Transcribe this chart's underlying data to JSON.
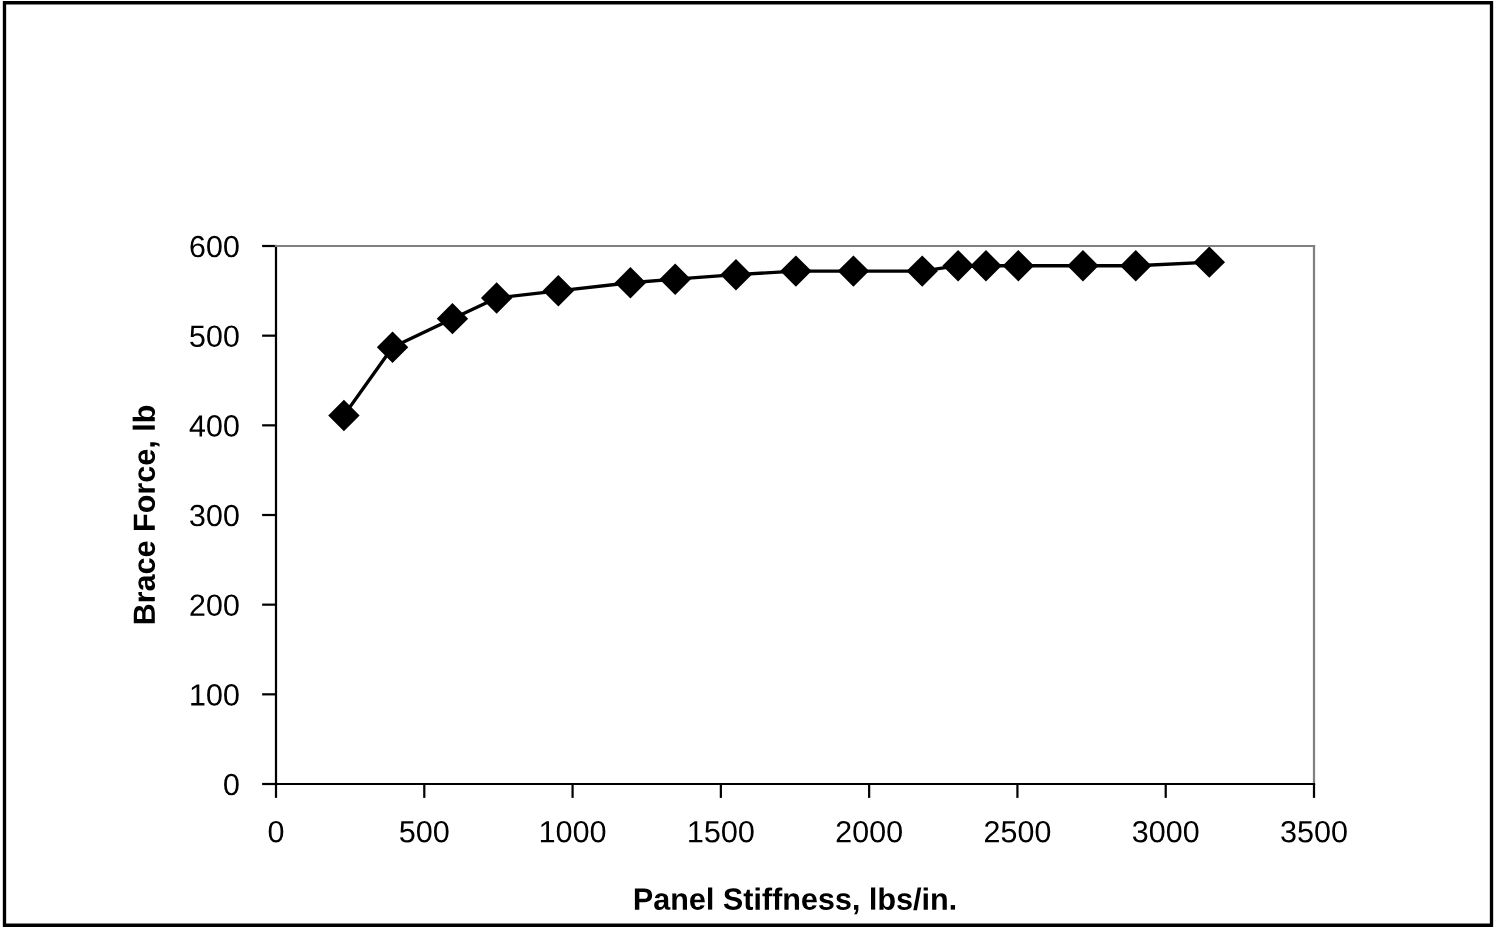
{
  "chart_data": {
    "type": "line",
    "xlabel": "Panel Stiffness, lbs/in.",
    "ylabel": "Brace Force, lb",
    "x": [
      229,
      393,
      595,
      744,
      952,
      1195,
      1346,
      1551,
      1753,
      1947,
      2179,
      2300,
      2394,
      2503,
      2721,
      2899,
      3147
    ],
    "series": [
      {
        "color": "#000000",
        "values": [
          411,
          487,
          519,
          542,
          550,
          559,
          563,
          568,
          572,
          572,
          572,
          578,
          578,
          578,
          578,
          578,
          582
        ]
      }
    ],
    "xlim": [
      0,
      3500
    ],
    "xticks": [
      0,
      500,
      1000,
      1500,
      2000,
      2500,
      3000,
      3500
    ],
    "ylim": [
      0,
      600
    ],
    "yticks": [
      0,
      100,
      200,
      300,
      400,
      500,
      600
    ],
    "grid": false,
    "legend": false,
    "marker": "diamond",
    "line_style": "solid"
  }
}
